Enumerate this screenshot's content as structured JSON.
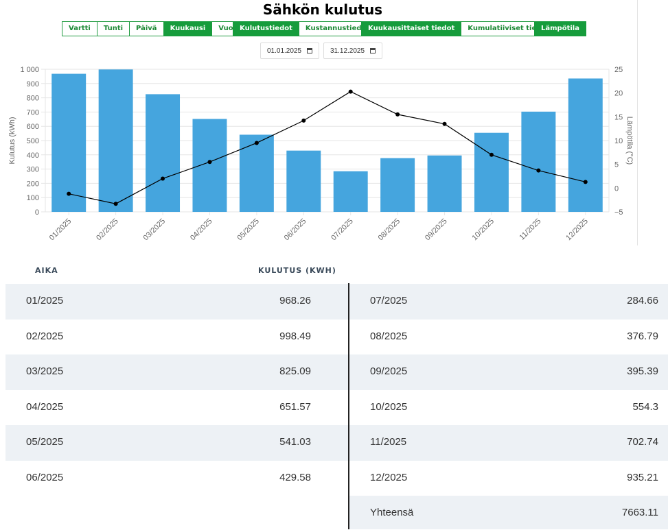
{
  "title": "Sähkön kulutus",
  "period_buttons": [
    {
      "label": "Vartti",
      "active": false
    },
    {
      "label": "Tunti",
      "active": false
    },
    {
      "label": "Päivä",
      "active": false
    },
    {
      "label": "Kuukausi",
      "active": true
    },
    {
      "label": "Vuosi",
      "active": false
    }
  ],
  "data_buttons": [
    {
      "label": "Kulutustiedot",
      "active": true
    },
    {
      "label": "Kustannustiedot",
      "active": false
    }
  ],
  "view_buttons": [
    {
      "label": "Kuukausittaiset tiedot",
      "active": true
    },
    {
      "label": "Kumulatiiviset tiedot",
      "active": false
    }
  ],
  "temp_button": {
    "label": "Lämpötila",
    "active": true
  },
  "date_start": "01.01.2025",
  "date_end": "31.12.2025",
  "colors": {
    "bar": "#45a5de",
    "green": "#169c3c",
    "line": "#000000"
  },
  "chart_data": {
    "type": "bar",
    "categories": [
      "01/2025",
      "02/2025",
      "03/2025",
      "04/2025",
      "05/2025",
      "06/2025",
      "07/2025",
      "08/2025",
      "09/2025",
      "10/2025",
      "11/2025",
      "12/2025"
    ],
    "series": [
      {
        "values": [
          968.26,
          998.49,
          825.09,
          651.57,
          541.03,
          429.58,
          284.66,
          376.79,
          395.39,
          554.3,
          702.74,
          935.21
        ],
        "axis": "left",
        "kind": "bar"
      },
      {
        "values": [
          -1.2,
          -3.3,
          2.0,
          5.5,
          9.5,
          14.2,
          20.3,
          15.5,
          13.5,
          7.0,
          3.7,
          1.3
        ],
        "axis": "right",
        "kind": "line"
      }
    ],
    "ylabel_left": "Kulutus (kWh)",
    "ylabel_right": "Lämpötila (°C)",
    "ylim_left": [
      0,
      1000
    ],
    "yticks_left": [
      "0",
      "100",
      "200",
      "300",
      "400",
      "500",
      "600",
      "700",
      "800",
      "900",
      "1 000"
    ],
    "ylim_right": [
      -5,
      25
    ],
    "yticks_right": [
      "−5",
      "0",
      "5",
      "10",
      "15",
      "20",
      "25"
    ],
    "grid": true
  },
  "table": {
    "col_time": "AIKA",
    "col_kwh": "KULUTUS (KWH)",
    "left_rows": [
      {
        "time": "01/2025",
        "value": "968.26"
      },
      {
        "time": "02/2025",
        "value": "998.49"
      },
      {
        "time": "03/2025",
        "value": "825.09"
      },
      {
        "time": "04/2025",
        "value": "651.57"
      },
      {
        "time": "05/2025",
        "value": "541.03"
      },
      {
        "time": "06/2025",
        "value": "429.58"
      }
    ],
    "right_rows": [
      {
        "time": "07/2025",
        "value": "284.66"
      },
      {
        "time": "08/2025",
        "value": "376.79"
      },
      {
        "time": "09/2025",
        "value": "395.39"
      },
      {
        "time": "10/2025",
        "value": "554.3"
      },
      {
        "time": "11/2025",
        "value": "702.74"
      },
      {
        "time": "12/2025",
        "value": "935.21"
      }
    ],
    "total_label": "Yhteensä",
    "total_value": "7663.11"
  }
}
